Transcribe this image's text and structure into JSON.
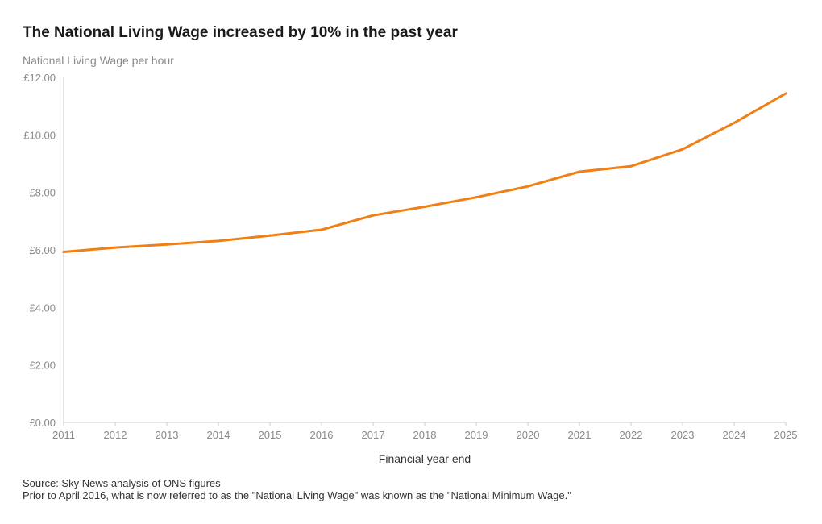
{
  "header": {
    "title": "The National Living Wage increased by 10% in the past year",
    "subtitle": "National Living Wage per hour"
  },
  "footer": {
    "source": "Source: Sky News analysis of ONS figures",
    "note": "Prior to April 2016, what is now referred to as the \"National Living Wage\" was known as the \"National Minimum Wage.\""
  },
  "colors": {
    "line": "#f07f14",
    "axis": "#cccccc",
    "text_muted": "#8a8a8a"
  },
  "chart_data": {
    "type": "line",
    "title": "The National Living Wage increased by 10% in the past year",
    "subtitle": "National Living Wage per hour",
    "xlabel": "Financial year end",
    "ylabel": "",
    "x": [
      2011,
      2012,
      2013,
      2014,
      2015,
      2016,
      2017,
      2018,
      2019,
      2020,
      2021,
      2022,
      2023,
      2024,
      2025
    ],
    "series": [
      {
        "values": [
          5.93,
          6.08,
          6.19,
          6.31,
          6.5,
          6.7,
          7.2,
          7.5,
          7.83,
          8.21,
          8.72,
          8.91,
          9.5,
          10.42,
          11.44
        ]
      }
    ],
    "ylim": [
      0,
      12
    ],
    "yticks": [
      0,
      2,
      4,
      6,
      8,
      10,
      12
    ],
    "ytick_labels": [
      "£0.00",
      "£2.00",
      "£4.00",
      "£6.00",
      "£8.00",
      "£10.00",
      "£12.00"
    ],
    "xticks": [
      "2011",
      "2012",
      "2013",
      "2014",
      "2015",
      "2016",
      "2017",
      "2018",
      "2019",
      "2020",
      "2021",
      "2022",
      "2023",
      "2024",
      "2025"
    ],
    "grid": false,
    "legend": "none"
  }
}
